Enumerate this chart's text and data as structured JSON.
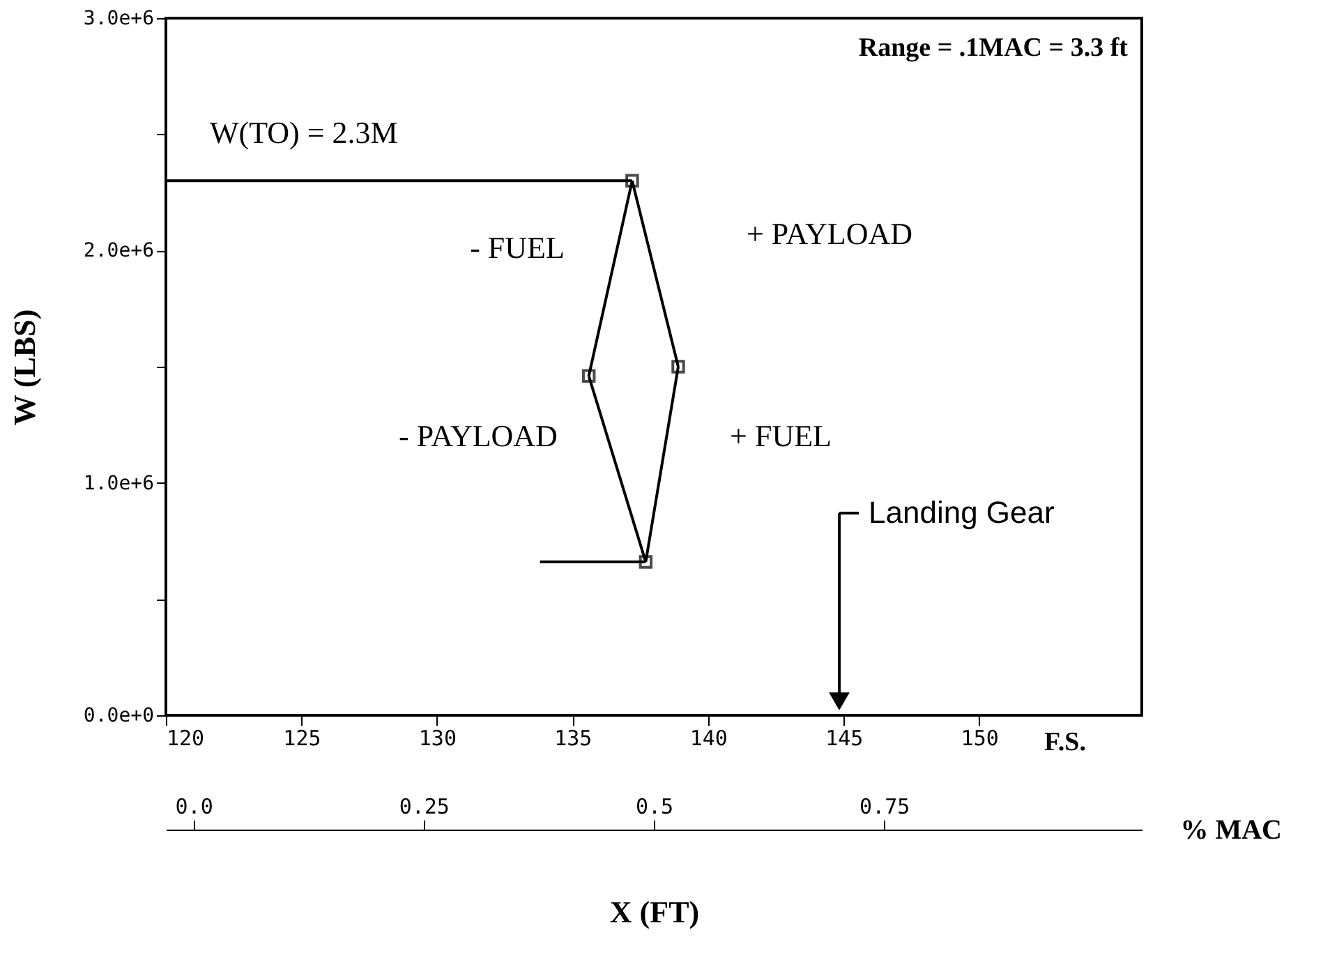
{
  "chart_data": {
    "type": "line",
    "xlabel": "X (FT)",
    "ylabel": "W (LBS)",
    "xlim": [
      120,
      156
    ],
    "ylim": [
      0,
      3000000
    ],
    "xticks": [
      120,
      125,
      130,
      135,
      140,
      145,
      150
    ],
    "yticks": [
      {
        "value": 0,
        "label": "0.0e+0"
      },
      {
        "value": 500000,
        "label": null
      },
      {
        "value": 1000000,
        "label": "1.0e+6"
      },
      {
        "value": 1500000,
        "label": null
      },
      {
        "value": 2000000,
        "label": "2.0e+6"
      },
      {
        "value": 2500000,
        "label": null
      },
      {
        "value": 3000000,
        "label": "3.0e+6"
      }
    ],
    "x2label": "% MAC",
    "x2lim": [
      -0.03,
      1.03
    ],
    "x2ticks": [
      {
        "value": 0,
        "label": "0.0"
      },
      0.25,
      0.5,
      0.75
    ],
    "grid": false,
    "marker": "none",
    "line_style": "solid",
    "series": [
      {
        "color": "#000000",
        "marker": "square",
        "x": [
          135.6,
          137.2
        ],
        "values": [
          1460000,
          2300000
        ]
      },
      {
        "color": "#000000",
        "marker": "square",
        "x": [
          135.6,
          137.7
        ],
        "values": [
          1460000,
          660000
        ]
      },
      {
        "color": "#000000",
        "marker": "square",
        "x": [
          137.7,
          138.9
        ],
        "values": [
          660000,
          1500000
        ]
      },
      {
        "color": "#000000",
        "x": [
          137.2,
          138.9
        ],
        "values": [
          2300000,
          1500000
        ]
      },
      {
        "color": "#000000",
        "x": [
          120,
          137.2
        ],
        "values": [
          2300000,
          2300000
        ]
      },
      {
        "color": "#000000",
        "x": [
          133.8,
          137.7
        ],
        "values": [
          660000,
          660000
        ]
      }
    ],
    "annotations": [
      "Range = .1MAC = 3.3 ft",
      "F.S.",
      "W(TO) = 2.3M",
      "- FUEL",
      "+ PAYLOAD",
      "- PAYLOAD",
      "+ FUEL",
      "Landing Gear"
    ]
  }
}
